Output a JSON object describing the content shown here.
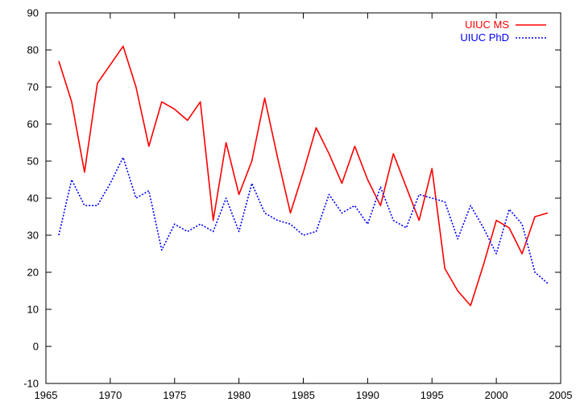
{
  "chart_data": {
    "type": "line",
    "title": "",
    "xlabel": "",
    "ylabel": "",
    "xlim": [
      1965,
      2005
    ],
    "ylim": [
      -10,
      90
    ],
    "x_ticks": [
      1965,
      1970,
      1975,
      1980,
      1985,
      1990,
      1995,
      2000,
      2005
    ],
    "y_ticks": [
      -10,
      0,
      10,
      20,
      30,
      40,
      50,
      60,
      70,
      80,
      90
    ],
    "grid": false,
    "legend_position": "top-right",
    "series": [
      {
        "name": "UIUC MS",
        "color": "#ff0000",
        "style": "solid",
        "x": [
          1966,
          1967,
          1968,
          1969,
          1970,
          1971,
          1972,
          1973,
          1974,
          1975,
          1976,
          1977,
          1978,
          1979,
          1980,
          1981,
          1982,
          1983,
          1984,
          1985,
          1986,
          1987,
          1988,
          1989,
          1990,
          1991,
          1992,
          1993,
          1994,
          1995,
          1996,
          1997,
          1998,
          1999,
          2000,
          2001,
          2002,
          2003,
          2004
        ],
        "values": [
          77,
          66,
          47,
          71,
          76,
          81,
          70,
          54,
          66,
          64,
          61,
          66,
          34,
          55,
          41,
          50,
          67,
          51,
          36,
          47,
          59,
          52,
          44,
          54,
          45,
          38,
          52,
          43,
          34,
          48,
          21,
          15,
          11,
          22,
          34,
          32,
          25,
          35,
          36
        ]
      },
      {
        "name": "UIUC PhD",
        "color": "#0000ff",
        "style": "dotted",
        "x": [
          1966,
          1967,
          1968,
          1969,
          1970,
          1971,
          1972,
          1973,
          1974,
          1975,
          1976,
          1977,
          1978,
          1979,
          1980,
          1981,
          1982,
          1983,
          1984,
          1985,
          1986,
          1987,
          1988,
          1989,
          1990,
          1991,
          1992,
          1993,
          1994,
          1995,
          1996,
          1997,
          1998,
          1999,
          2000,
          2001,
          2002,
          2003,
          2004
        ],
        "values": [
          30,
          45,
          38,
          38,
          44,
          51,
          40,
          42,
          26,
          33,
          31,
          33,
          31,
          40,
          31,
          44,
          36,
          34,
          33,
          30,
          31,
          41,
          36,
          38,
          33,
          43,
          34,
          32,
          41,
          40,
          39,
          29,
          38,
          32,
          25,
          37,
          33,
          20,
          17
        ]
      }
    ]
  }
}
